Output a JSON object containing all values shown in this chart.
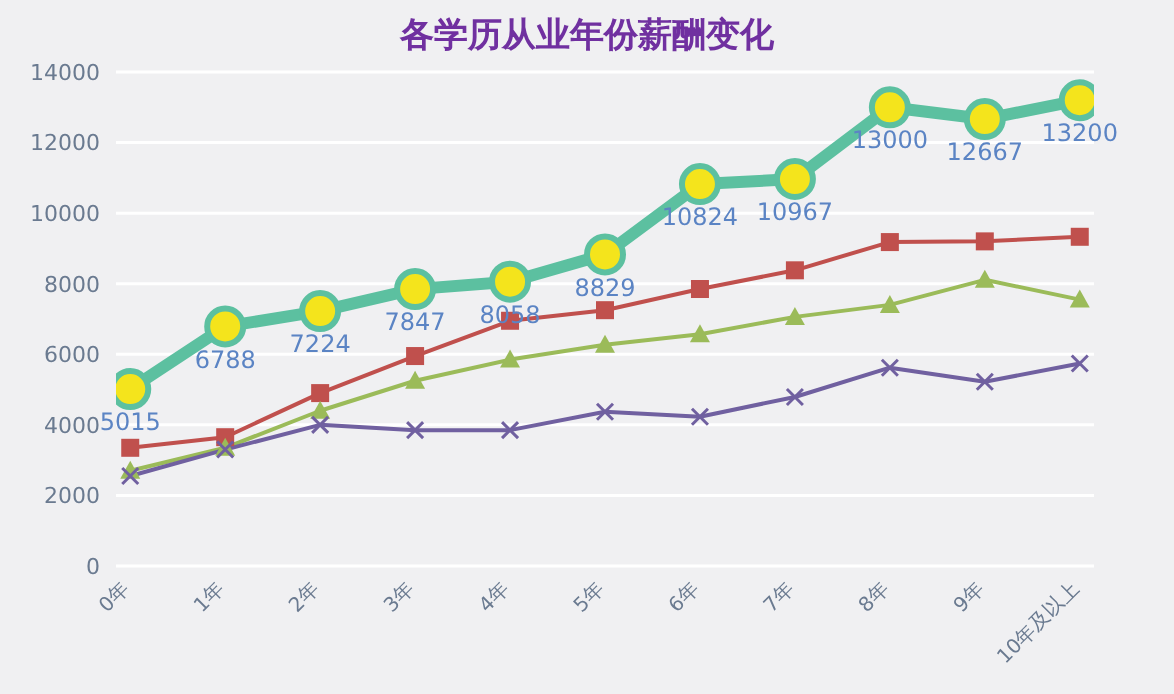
{
  "chart_data": {
    "type": "line",
    "title": "各学历从业年份薪酬变化",
    "categories": [
      "0年",
      "1年",
      "2年",
      "3年",
      "4年",
      "5年",
      "6年",
      "7年",
      "8年",
      "9年",
      "10年及以上"
    ],
    "series": [
      {
        "color": "#5cc0a0",
        "marker": "circle",
        "data_labels": true,
        "values": [
          5015,
          6788,
          7224,
          7847,
          8058,
          8829,
          10824,
          10967,
          13000,
          12667,
          13200
        ]
      },
      {
        "color": "#c0504d",
        "marker": "square",
        "values": [
          3350,
          3650,
          4900,
          5950,
          6950,
          7250,
          7850,
          8380,
          9180,
          9200,
          9330
        ]
      },
      {
        "color": "#9bbb59",
        "marker": "triangle",
        "values": [
          2700,
          3350,
          4400,
          5250,
          5850,
          6270,
          6570,
          7060,
          7400,
          8110,
          7550
        ]
      },
      {
        "color": "#7060a0",
        "marker": "cross",
        "values": [
          2550,
          3300,
          4000,
          3850,
          3850,
          4370,
          4230,
          4790,
          5620,
          5220,
          5740
        ]
      }
    ],
    "ylim": [
      0,
      14000
    ],
    "yticks": [
      0,
      2000,
      4000,
      6000,
      8000,
      10000,
      12000,
      14000
    ],
    "grid": "y",
    "legend": false,
    "line_style": "solid"
  }
}
